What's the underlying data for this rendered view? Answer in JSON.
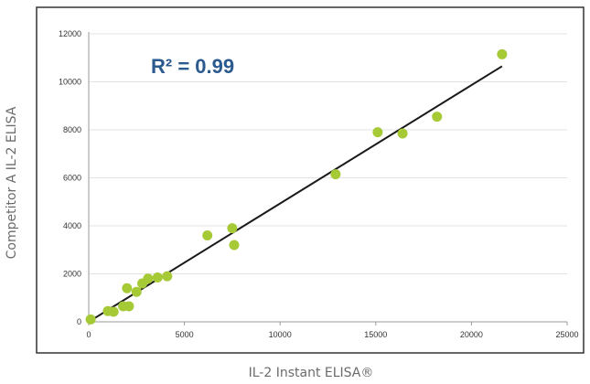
{
  "chart_data": {
    "type": "scatter",
    "title": "",
    "xlabel": "IL-2 Instant ELISA®",
    "ylabel": "Competitor A IL-2 ELISA",
    "xlim": [
      0,
      25000
    ],
    "ylim": [
      0,
      12000
    ],
    "xticks": [
      0,
      5000,
      10000,
      15000,
      20000,
      25000
    ],
    "yticks": [
      0,
      2000,
      4000,
      6000,
      8000,
      10000,
      12000
    ],
    "xtick_labels": [
      "0",
      "5000",
      "10000",
      "15000",
      "20000",
      "25000"
    ],
    "ytick_labels": [
      "0",
      "2000",
      "4000",
      "6000",
      "8000",
      "10000",
      "12000"
    ],
    "grid": "horizontal",
    "annotation": "R² = 0.99",
    "series": [
      {
        "marker_color": "#a6c936",
        "x": [
          100,
          1000,
          1300,
          1800,
          2100,
          2000,
          2500,
          2800,
          3100,
          3600,
          4100,
          6200,
          7500,
          7600,
          12900,
          15100,
          16400,
          18200,
          21600
        ],
        "y": [
          100,
          450,
          420,
          650,
          650,
          1400,
          1250,
          1600,
          1800,
          1850,
          1900,
          3600,
          3900,
          3200,
          6150,
          7900,
          7850,
          8550,
          11150
        ]
      }
    ],
    "trendline": {
      "color": "#1a1a1a",
      "x": [
        100,
        21600
      ],
      "y": [
        50,
        10650
      ]
    }
  },
  "colors": {
    "frame": "#333333",
    "grid": "#e3e3e3",
    "annotation": "#2b5a8f",
    "marker": "#a6c936"
  }
}
